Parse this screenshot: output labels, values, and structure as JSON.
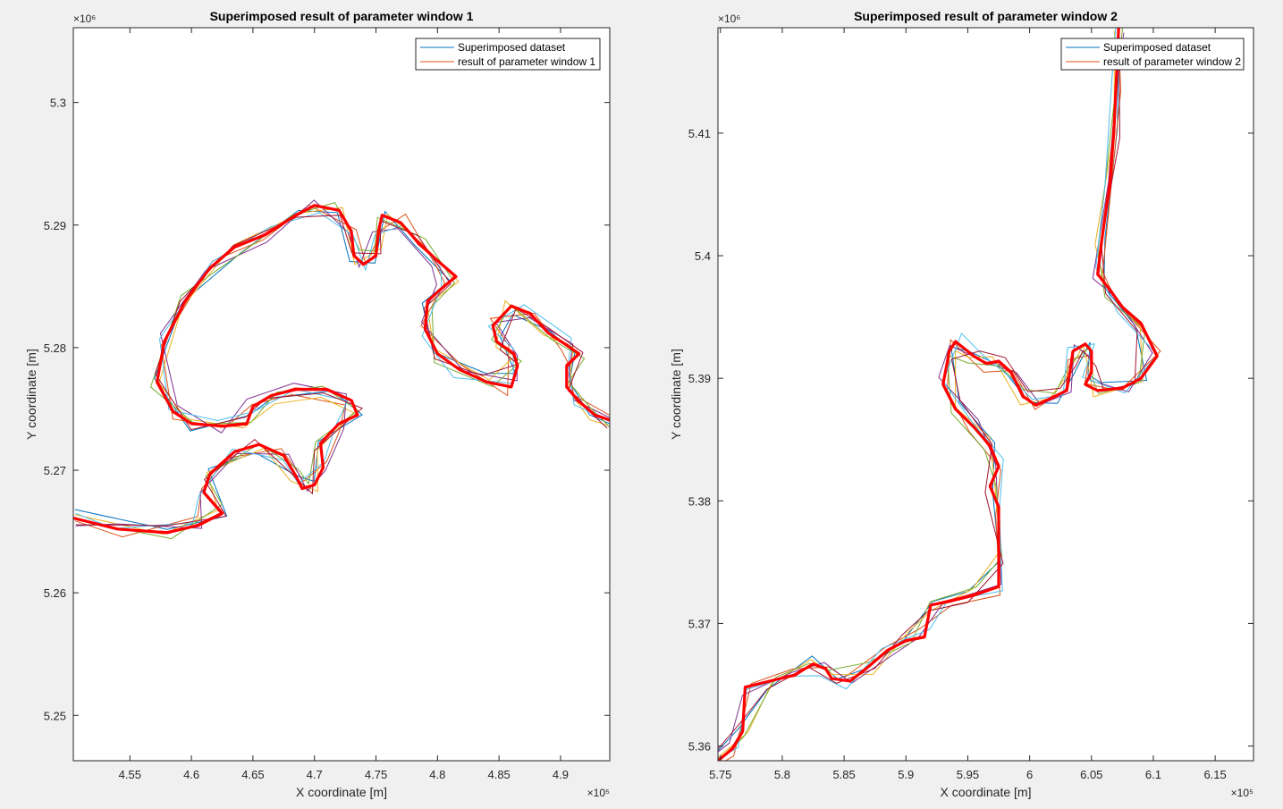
{
  "chart_data": [
    {
      "type": "line",
      "title": "Superimposed result of parameter window 1",
      "xlabel": "X coordinate [m]",
      "ylabel": "Y coordinate [m]",
      "x_exponent_label": "×10⁵",
      "y_exponent_label": "×10⁶",
      "xlim": [
        4.504,
        4.94
      ],
      "ylim": [
        5.2463,
        5.3061
      ],
      "x_scale": 100000,
      "y_scale": 1000000,
      "xticks": [
        4.55,
        4.6,
        4.65,
        4.7,
        4.75,
        4.8,
        4.85,
        4.9
      ],
      "xtick_labels": [
        "4.55",
        "4.6",
        "4.65",
        "4.7",
        "4.75",
        "4.8",
        "4.85",
        "4.9"
      ],
      "yticks": [
        5.25,
        5.26,
        5.27,
        5.28,
        5.29,
        5.3
      ],
      "ytick_labels": [
        "5.25",
        "5.26",
        "5.27",
        "5.28",
        "5.29",
        "5.3"
      ],
      "grid": false,
      "legend_position": "top-right",
      "legend": [
        {
          "label": "Superimposed dataset",
          "color": "#0072BD"
        },
        {
          "label": "result of parameter window 1",
          "color": "#D95319"
        }
      ],
      "dataset_colors": [
        "#0072BD",
        "#D95319",
        "#EDB120",
        "#7E2F8E",
        "#77AC30",
        "#4DBEEE",
        "#A2142F"
      ],
      "result_color": "#FF0000",
      "path": [
        [
          4.504,
          5.2661
        ],
        [
          4.54,
          5.2652
        ],
        [
          4.58,
          5.2649
        ],
        [
          4.605,
          5.2655
        ],
        [
          4.625,
          5.2665
        ],
        [
          4.61,
          5.2682
        ],
        [
          4.615,
          5.2697
        ],
        [
          4.635,
          5.2715
        ],
        [
          4.655,
          5.2721
        ],
        [
          4.675,
          5.2712
        ],
        [
          4.685,
          5.2695
        ],
        [
          4.69,
          5.2685
        ],
        [
          4.7,
          5.2688
        ],
        [
          4.707,
          5.2702
        ],
        [
          4.705,
          5.2722
        ],
        [
          4.72,
          5.2738
        ],
        [
          4.735,
          5.2745
        ],
        [
          4.73,
          5.2757
        ],
        [
          4.71,
          5.2766
        ],
        [
          4.685,
          5.2766
        ],
        [
          4.665,
          5.2761
        ],
        [
          4.65,
          5.2752
        ],
        [
          4.645,
          5.2738
        ],
        [
          4.625,
          5.2736
        ],
        [
          4.6,
          5.2738
        ],
        [
          4.585,
          5.2748
        ],
        [
          4.572,
          5.2772
        ],
        [
          4.578,
          5.2805
        ],
        [
          4.595,
          5.2838
        ],
        [
          4.615,
          5.2865
        ],
        [
          4.635,
          5.2882
        ],
        [
          4.66,
          5.2892
        ],
        [
          4.685,
          5.2908
        ],
        [
          4.7,
          5.2916
        ],
        [
          4.72,
          5.2912
        ],
        [
          4.73,
          5.2895
        ],
        [
          4.732,
          5.2875
        ],
        [
          4.74,
          5.2868
        ],
        [
          4.75,
          5.2875
        ],
        [
          4.752,
          5.2895
        ],
        [
          4.755,
          5.2908
        ],
        [
          4.77,
          5.2902
        ],
        [
          4.785,
          5.2885
        ],
        [
          4.8,
          5.2871
        ],
        [
          4.815,
          5.2858
        ],
        [
          4.803,
          5.2848
        ],
        [
          4.792,
          5.2838
        ],
        [
          4.79,
          5.2815
        ],
        [
          4.8,
          5.2795
        ],
        [
          4.818,
          5.2782
        ],
        [
          4.84,
          5.2772
        ],
        [
          4.86,
          5.2768
        ],
        [
          4.865,
          5.2785
        ],
        [
          4.862,
          5.2795
        ],
        [
          4.848,
          5.2805
        ],
        [
          4.845,
          5.2818
        ],
        [
          4.86,
          5.2834
        ],
        [
          4.875,
          5.2828
        ],
        [
          4.89,
          5.2812
        ],
        [
          4.905,
          5.2802
        ],
        [
          4.915,
          5.2795
        ],
        [
          4.905,
          5.2785
        ],
        [
          4.905,
          5.2768
        ],
        [
          4.915,
          5.2756
        ],
        [
          4.928,
          5.2745
        ],
        [
          4.94,
          5.2741
        ]
      ]
    },
    {
      "type": "line",
      "title": "Superimposed result of parameter window 2",
      "xlabel": "X coordinate [m]",
      "ylabel": "Y coordinate [m]",
      "x_exponent_label": "×10⁵",
      "y_exponent_label": "×10⁶",
      "xlim": [
        5.748,
        6.181
      ],
      "ylim": [
        5.3588,
        5.4186
      ],
      "x_scale": 100000,
      "y_scale": 1000000,
      "xticks": [
        5.75,
        5.8,
        5.85,
        5.9,
        5.95,
        6.0,
        6.05,
        6.1,
        6.15
      ],
      "xtick_labels": [
        "5.75",
        "5.8",
        "5.85",
        "5.9",
        "5.95",
        "6",
        "6.05",
        "6.1",
        "6.15"
      ],
      "yticks": [
        5.36,
        5.37,
        5.38,
        5.39,
        5.4,
        5.41
      ],
      "ytick_labels": [
        "5.36",
        "5.37",
        "5.38",
        "5.39",
        "5.4",
        "5.41"
      ],
      "grid": false,
      "legend_position": "top-right",
      "legend": [
        {
          "label": "Superimposed dataset",
          "color": "#0072BD"
        },
        {
          "label": "result of parameter window 2",
          "color": "#D95319"
        }
      ],
      "dataset_colors": [
        "#0072BD",
        "#D95319",
        "#EDB120",
        "#7E2F8E",
        "#77AC30",
        "#4DBEEE",
        "#A2142F"
      ],
      "result_color": "#FF0000",
      "path": [
        [
          5.748,
          5.3588
        ],
        [
          5.76,
          5.3598
        ],
        [
          5.768,
          5.3612
        ],
        [
          5.77,
          5.3648
        ],
        [
          5.79,
          5.3653
        ],
        [
          5.81,
          5.3658
        ],
        [
          5.825,
          5.3667
        ],
        [
          5.835,
          5.3663
        ],
        [
          5.84,
          5.3655
        ],
        [
          5.855,
          5.3653
        ],
        [
          5.87,
          5.3665
        ],
        [
          5.885,
          5.3678
        ],
        [
          5.9,
          5.3686
        ],
        [
          5.915,
          5.3689
        ],
        [
          5.92,
          5.3715
        ],
        [
          5.935,
          5.3718
        ],
        [
          5.955,
          5.3723
        ],
        [
          5.975,
          5.373
        ],
        [
          5.975,
          5.3755
        ],
        [
          5.975,
          5.3795
        ],
        [
          5.968,
          5.3812
        ],
        [
          5.975,
          5.3828
        ],
        [
          5.968,
          5.3845
        ],
        [
          5.955,
          5.386
        ],
        [
          5.94,
          5.3875
        ],
        [
          5.93,
          5.3895
        ],
        [
          5.935,
          5.3922
        ],
        [
          5.94,
          5.393
        ],
        [
          5.955,
          5.3918
        ],
        [
          5.965,
          5.3912
        ],
        [
          5.975,
          5.3914
        ],
        [
          5.985,
          5.3905
        ],
        [
          5.995,
          5.3885
        ],
        [
          6.005,
          5.3878
        ],
        [
          6.02,
          5.3885
        ],
        [
          6.03,
          5.389
        ],
        [
          6.033,
          5.3908
        ],
        [
          6.035,
          5.3922
        ],
        [
          6.045,
          5.3928
        ],
        [
          6.05,
          5.3922
        ],
        [
          6.05,
          5.3905
        ],
        [
          6.045,
          5.3895
        ],
        [
          6.055,
          5.389
        ],
        [
          6.075,
          5.3892
        ],
        [
          6.09,
          5.39
        ],
        [
          6.103,
          5.3918
        ],
        [
          6.09,
          5.3945
        ],
        [
          6.075,
          5.3958
        ],
        [
          6.065,
          5.3972
        ],
        [
          6.055,
          5.3985
        ],
        [
          6.058,
          5.401
        ],
        [
          6.065,
          5.406
        ],
        [
          6.068,
          5.41
        ],
        [
          6.07,
          5.414
        ],
        [
          6.072,
          5.4186
        ]
      ]
    }
  ]
}
